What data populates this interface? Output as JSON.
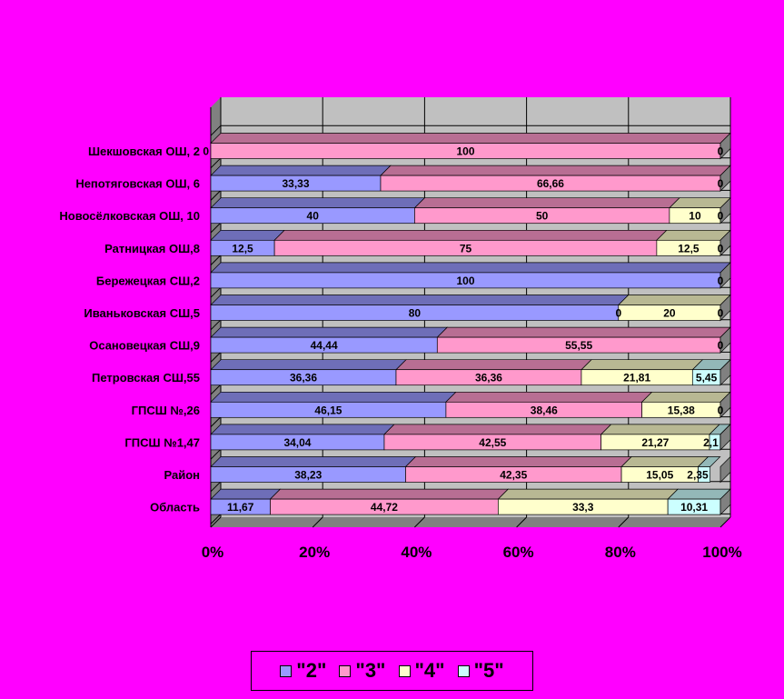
{
  "chart_data": {
    "type": "bar",
    "orientation": "horizontal",
    "stacked": "percent",
    "categories": [
      "Шекшовская ОШ, 2",
      "Непотяговская ОШ, 6",
      "Новосёлковская ОШ, 10",
      "Ратницкая ОШ,8",
      "Бережецкая СШ,2",
      "Иваньковская СШ,5",
      "Осановецкая СШ,9",
      "Петровская СШ,55",
      "ГПСШ №,26",
      "ГПСШ №1,47",
      "Район",
      "Область"
    ],
    "series": [
      {
        "name": "\"2\"",
        "color": "#9999FF",
        "values": [
          0,
          33.33,
          40,
          12.5,
          100,
          80,
          44.44,
          36.36,
          46.15,
          34.04,
          38.23,
          11.67
        ],
        "labels": [
          "0",
          "33,33",
          "40",
          "12,5",
          "100",
          "80",
          "44,44",
          "36,36",
          "46,15",
          "34,04",
          "38,23",
          "11,67"
        ]
      },
      {
        "name": "\"3\"",
        "color": "#FF99CC",
        "values": [
          100,
          66.66,
          50,
          75,
          0,
          0,
          55.55,
          36.36,
          38.46,
          42.55,
          42.35,
          44.72
        ],
        "labels": [
          "100",
          "66,66",
          "50",
          "75",
          "",
          "0",
          "55,55",
          "36,36",
          "38,46",
          "42,55",
          "42,35",
          "44,72"
        ]
      },
      {
        "name": "\"4\"",
        "color": "#FFFFCC",
        "values": [
          0,
          0,
          10,
          12.5,
          0,
          20,
          0,
          21.81,
          15.38,
          21.27,
          15.05,
          33.3
        ],
        "labels": [
          "",
          "",
          "10",
          "12,5",
          "",
          "20",
          "",
          "21,81",
          "15,38",
          "21,27",
          "15,05",
          "33,3"
        ]
      },
      {
        "name": "\"5\"",
        "color": "#CCFFFF",
        "values": [
          0,
          0,
          0,
          0,
          0,
          0,
          0,
          5.45,
          0,
          2.1,
          2.35,
          10.31
        ],
        "labels": [
          "0",
          "0",
          "0",
          "0",
          "0",
          "0",
          "0",
          "5,45",
          "0",
          "2,1",
          "2,35",
          "10,31"
        ]
      }
    ],
    "x_ticks": [
      "0%",
      "20%",
      "40%",
      "60%",
      "80%",
      "100%"
    ],
    "xlim": [
      0,
      100
    ],
    "grid": true,
    "legend_position": "bottom",
    "background": "#FF00FF",
    "wall_color": "#C0C0C0"
  }
}
